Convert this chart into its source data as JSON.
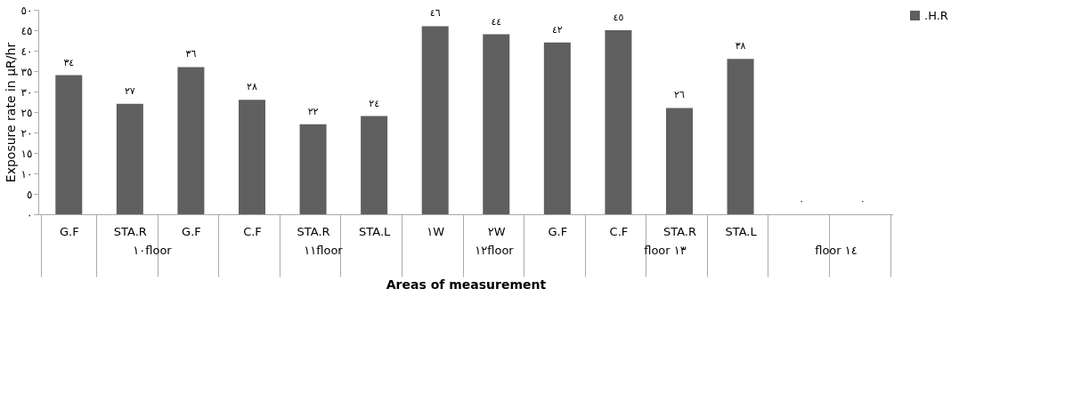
{
  "chart_data": {
    "type": "bar",
    "xlabel": "Areas of measurement",
    "ylabel": "Exposure rate in µR/hr",
    "categories": [
      "G.F",
      "STA.R",
      "G.F",
      "C.F",
      "STA.R",
      "STA.L",
      "١W",
      "٢W",
      "G.F",
      "C.F",
      "STA.R",
      "STA.L",
      null,
      null
    ],
    "series": [
      {
        "name": ".H.R",
        "color": "#5f5f5f",
        "values": [
          34,
          27,
          36,
          28,
          22,
          24,
          46,
          44,
          42,
          45,
          26,
          38,
          0,
          0
        ],
        "value_labels": [
          "٣٤",
          "٢٧",
          "٣٦",
          "٢٨",
          "٢٢",
          "٢٤",
          "٤٦",
          "٤٤",
          "٤٢",
          "٤٥",
          "٢٦",
          "٣٨",
          "٠",
          "٠"
        ]
      }
    ],
    "ylim": [
      0,
      50
    ],
    "yticks": [
      {
        "value": 0,
        "label": "٠"
      },
      {
        "value": 5,
        "label": "٥"
      },
      {
        "value": 10,
        "label": "١٠"
      },
      {
        "value": 15,
        "label": "١٥"
      },
      {
        "value": 20,
        "label": "٢٠"
      },
      {
        "value": 25,
        "label": "٢٥"
      },
      {
        "value": 30,
        "label": "٣٠"
      },
      {
        "value": 35,
        "label": "٣٥"
      },
      {
        "value": 40,
        "label": "٤٠"
      },
      {
        "value": 45,
        "label": "٤٥"
      },
      {
        "value": 50,
        "label": "٥٠"
      }
    ],
    "annotations": [
      "١٠floor",
      "١١floor",
      "١٢floor",
      "floor ١٣",
      "floor ١٤"
    ],
    "legend": "top right",
    "grid": false
  }
}
